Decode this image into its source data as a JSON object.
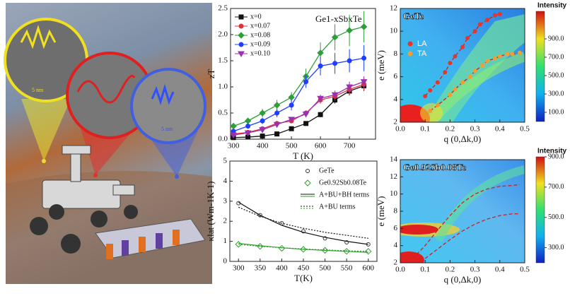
{
  "illustration": {
    "scale_labels": [
      "5 nm",
      "5 nm"
    ]
  },
  "chart_data": [
    {
      "type": "line",
      "title": "Ge1-xSbxTe",
      "xlabel": "T (K)",
      "ylabel": "zT",
      "x": [
        300,
        350,
        400,
        450,
        500,
        550,
        600,
        650,
        700,
        750
      ],
      "xlim": [
        290,
        790
      ],
      "xticks": [
        300,
        400,
        500,
        600,
        700
      ],
      "ylim": [
        0,
        2.5
      ],
      "yticks": [
        {
          "value": 0,
          "label": "0.0"
        },
        0.5,
        {
          "value": 1,
          "label": "1.0"
        },
        1.5,
        {
          "value": 2,
          "label": "2.0"
        },
        2.5
      ],
      "legend": "upper left",
      "series": [
        {
          "name": "x=0",
          "color": "#111111",
          "marker": "square",
          "values": [
            0.03,
            0.04,
            0.06,
            0.1,
            0.2,
            0.3,
            0.47,
            0.75,
            0.92,
            1.02
          ],
          "errors": [
            0.02,
            0.02,
            0.02,
            0.03,
            0.03,
            0.04,
            0.05,
            0.07,
            0.08,
            0.1
          ]
        },
        {
          "name": "x=0.07",
          "color": "#e0303a",
          "marker": "circle",
          "values": [
            0.1,
            0.13,
            0.2,
            0.3,
            0.35,
            0.5,
            0.75,
            0.82,
            0.95,
            1.05
          ],
          "errors": [
            0.02,
            0.02,
            0.03,
            0.03,
            0.04,
            0.05,
            0.07,
            0.08,
            0.1,
            0.12
          ]
        },
        {
          "name": "x=0.08",
          "color": "#2e9e3a",
          "marker": "diamond",
          "values": [
            0.25,
            0.35,
            0.5,
            0.65,
            0.8,
            1.2,
            1.65,
            1.95,
            2.08,
            2.15
          ],
          "errors": [
            0.05,
            0.05,
            0.08,
            0.1,
            0.1,
            0.15,
            0.2,
            0.25,
            0.3,
            0.3
          ]
        },
        {
          "name": "x=0.09",
          "color": "#1f3fff",
          "marker": "circle",
          "values": [
            0.15,
            0.25,
            0.35,
            0.5,
            0.65,
            1.1,
            1.4,
            1.45,
            1.5,
            1.55
          ],
          "errors": [
            0.04,
            0.05,
            0.06,
            0.08,
            0.1,
            0.12,
            0.18,
            0.2,
            0.22,
            0.25
          ]
        },
        {
          "name": "x=0.10",
          "color": "#9b30b0",
          "marker": "triangle",
          "values": [
            0.08,
            0.12,
            0.18,
            0.28,
            0.38,
            0.48,
            0.78,
            0.85,
            1.0,
            1.1
          ],
          "errors": [
            0.02,
            0.02,
            0.03,
            0.03,
            0.04,
            0.05,
            0.07,
            0.08,
            0.1,
            0.1
          ]
        }
      ]
    },
    {
      "type": "scatter",
      "xlabel": "T(K)",
      "ylabel": "κlat (Wm-1K-1)",
      "x": [
        300,
        350,
        400,
        450,
        500,
        550,
        600
      ],
      "xlim": [
        280,
        620
      ],
      "xticks": [
        300,
        350,
        400,
        450,
        500,
        550,
        600
      ],
      "ylim": [
        0,
        5
      ],
      "yticks": [
        0,
        1,
        2,
        3,
        4,
        5
      ],
      "legend": "upper right",
      "series": [
        {
          "name": "GeTe",
          "color": "#333333",
          "marker": "circle",
          "values": [
            2.9,
            2.3,
            1.9,
            1.5,
            1.15,
            0.95,
            0.85
          ]
        },
        {
          "name": "Ge0.92Sb0.08Te",
          "color": "#2ca02c",
          "marker": "diamond",
          "values": [
            0.85,
            0.75,
            0.65,
            0.6,
            0.55,
            0.5,
            0.5
          ]
        }
      ],
      "fits": [
        {
          "name": "A+BU+BH terms",
          "dash": "solid",
          "curves": [
            {
              "color": "#111111",
              "values": [
                2.95,
                2.3,
                1.8,
                1.45,
                1.2,
                1.0,
                0.85
              ]
            },
            {
              "color": "#2ca02c",
              "values": [
                0.9,
                0.78,
                0.68,
                0.6,
                0.55,
                0.5,
                0.45
              ]
            }
          ]
        },
        {
          "name": "A+BU terms",
          "dash": "dotted",
          "curves": [
            {
              "color": "#111111",
              "values": [
                2.7,
                2.25,
                1.9,
                1.65,
                1.45,
                1.3,
                1.15
              ]
            },
            {
              "color": "#2ca02c",
              "values": [
                0.85,
                0.75,
                0.68,
                0.62,
                0.57,
                0.53,
                0.5
              ]
            }
          ]
        }
      ]
    },
    {
      "type": "dispersion",
      "title": "GeTe",
      "xlabel": "q (0,Δk,0)",
      "ylabel": "e (meV)",
      "xlim": [
        0,
        0.5
      ],
      "xticks": [
        {
          "value": 0,
          "label": "0.0"
        },
        0.1,
        0.2,
        0.3,
        0.4,
        0.5
      ],
      "ylim": [
        2,
        12
      ],
      "yticks": [
        2,
        4,
        6,
        8,
        10,
        12
      ],
      "colorbar_label": "Intensity",
      "clim": [
        0,
        1200
      ],
      "colorbar_ticks": [
        {
          "value": 100,
          "label": "100.0"
        },
        {
          "value": 300,
          "label": "300.0"
        },
        {
          "value": 500,
          "label": "500.0"
        },
        {
          "value": 700,
          "label": "700.0"
        },
        {
          "value": 900,
          "label": "900.0"
        }
      ],
      "legend": "upper left",
      "series": [
        {
          "name": "LA",
          "color": "#e8352a",
          "x": [
            0.1,
            0.12,
            0.15,
            0.18,
            0.2,
            0.22,
            0.25,
            0.27,
            0.3,
            0.32,
            0.35,
            0.38,
            0.4
          ],
          "values": [
            4.3,
            4.8,
            5.5,
            6.4,
            7.2,
            7.8,
            8.6,
            9.4,
            10.0,
            10.6,
            11.0,
            11.4,
            11.5
          ]
        },
        {
          "name": "TA",
          "color": "#f0a030",
          "x": [
            0.12,
            0.15,
            0.2,
            0.22,
            0.25,
            0.28,
            0.3,
            0.33,
            0.35,
            0.38,
            0.4,
            0.43,
            0.45,
            0.48
          ],
          "values": [
            3.0,
            3.5,
            4.4,
            4.9,
            5.5,
            6.0,
            6.5,
            7.0,
            7.4,
            7.6,
            7.8,
            8.0,
            8.0,
            8.1
          ]
        }
      ]
    },
    {
      "type": "dispersion",
      "title": "Ge0.92Sb0.08Te",
      "xlabel": "q (0,Δk,0)",
      "ylabel": "e (meV)",
      "xlim": [
        0,
        0.5
      ],
      "xticks": [
        {
          "value": 0,
          "label": "0.0"
        },
        0.1,
        0.2,
        0.3,
        0.4,
        0.5
      ],
      "ylim": [
        2,
        14
      ],
      "yticks": [
        2,
        4,
        6,
        8,
        10,
        12,
        14
      ],
      "colorbar_label": "Intensity",
      "clim": [
        200,
        900
      ],
      "colorbar_ticks": [
        {
          "value": 300,
          "label": "300.0"
        },
        {
          "value": 500,
          "label": "500.0"
        },
        {
          "value": 700,
          "label": "700.0"
        },
        {
          "value": 900,
          "label": "900.0"
        }
      ],
      "curves": [
        {
          "color": "#e0303a",
          "x": [
            0.05,
            0.1,
            0.15,
            0.2,
            0.25,
            0.3,
            0.35,
            0.4,
            0.45,
            0.48
          ],
          "values": [
            2.5,
            4,
            5.8,
            7.5,
            9,
            10,
            10.6,
            10.9,
            11.0,
            11.1
          ]
        },
        {
          "color": "#e0303a",
          "x": [
            0.1,
            0.15,
            0.2,
            0.25,
            0.3,
            0.35,
            0.4,
            0.45,
            0.48
          ],
          "values": [
            2.5,
            3.6,
            4.7,
            5.7,
            6.5,
            7.1,
            7.5,
            7.7,
            7.7
          ]
        }
      ]
    }
  ]
}
